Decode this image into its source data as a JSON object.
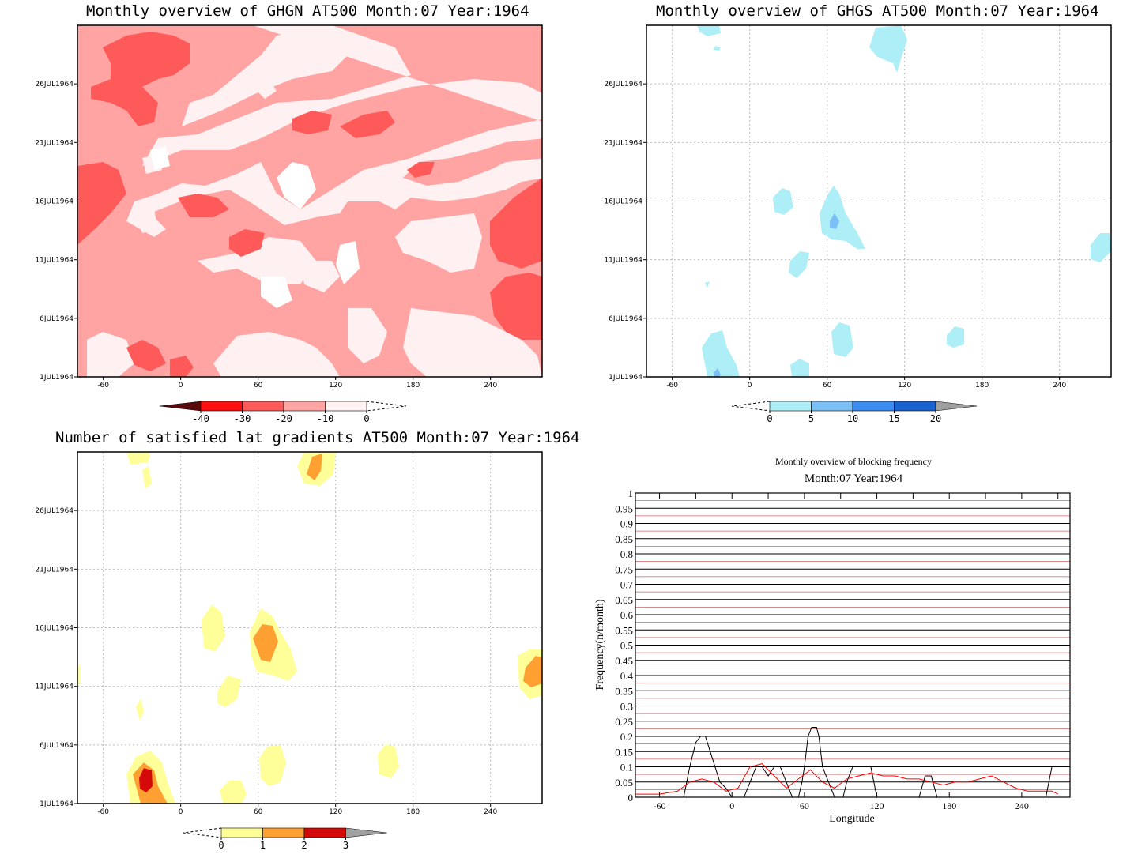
{
  "panels": {
    "ghgn": {
      "title": "Monthly overview of GHGN AT500 Month:07 Year:1964"
    },
    "ghgs": {
      "title": "Monthly overview of GHGS AT500 Month:07 Year:1964"
    },
    "latgrad": {
      "title": "Number of satisfied lat gradients AT500 Month:07 Year:1964"
    },
    "freq": {
      "title": "Monthly overview of blocking frequency",
      "subtitle": "Month:07 Year:1964"
    }
  },
  "map_axes": {
    "x_ticks": [
      "-60",
      "0",
      "60",
      "120",
      "180",
      "240"
    ],
    "x_values": [
      -60,
      0,
      60,
      120,
      180,
      240
    ],
    "xlim": [
      -80,
      280
    ],
    "y_ticks": [
      "1JUL1964",
      "6JUL1964",
      "11JUL1964",
      "16JUL1964",
      "21JUL1964",
      "26JUL1964"
    ],
    "y_values": [
      1,
      6,
      11,
      16,
      21,
      26
    ],
    "ylim": [
      1,
      31
    ]
  },
  "colorbars": {
    "ghgn": {
      "labels": [
        "-40",
        "-30",
        "-20",
        "-10",
        "0"
      ],
      "colors": [
        "#5a0a0a",
        "#ff1010",
        "#ff5a5a",
        "#ffa3a3",
        "#fff1f1"
      ]
    },
    "ghgs": {
      "labels": [
        "0",
        "5",
        "10",
        "15",
        "20"
      ],
      "colors": [
        "#aeeef6",
        "#7abff5",
        "#3a8cf0",
        "#1a62d0",
        "#a0a0a0"
      ]
    },
    "latgrad": {
      "labels": [
        "0",
        "1",
        "2",
        "3"
      ],
      "colors": [
        "#ffff9a",
        "#ffa033",
        "#d40a0a",
        "#a0a0a0"
      ]
    }
  },
  "chart_data": {
    "type": "line",
    "title": "Monthly overview of blocking frequency",
    "subtitle": "Month:07 Year:1964",
    "xlabel": "Longitude",
    "ylabel": "Frequency(n/month)",
    "xlim": [
      -80,
      280
    ],
    "ylim": [
      0,
      1
    ],
    "x_tick_labels": [
      "-60",
      "0",
      "60",
      "120",
      "180",
      "240"
    ],
    "x_ticks": [
      -60,
      0,
      60,
      120,
      180,
      240
    ],
    "y_tick_labels": [
      "0",
      "0.05",
      "0.1",
      "0.15",
      "0.2",
      "0.25",
      "0.3",
      "0.35",
      "0.4",
      "0.45",
      "0.5",
      "0.55",
      "0.6",
      "0.65",
      "0.7",
      "0.75",
      "0.8",
      "0.85",
      "0.9",
      "0.95",
      "1"
    ],
    "y_ticks": [
      0,
      0.05,
      0.1,
      0.15,
      0.2,
      0.25,
      0.3,
      0.35,
      0.4,
      0.45,
      0.5,
      0.55,
      0.6,
      0.65,
      0.7,
      0.75,
      0.8,
      0.85,
      0.9,
      0.95,
      1
    ],
    "grid": true,
    "series": [
      {
        "color": "#000000",
        "x": [
          -80,
          -70,
          -50,
          -40,
          -35,
          -30,
          -26,
          -22,
          -18,
          -14,
          -10,
          -5,
          0,
          10,
          20,
          25,
          30,
          35,
          40,
          45,
          50,
          55,
          58,
          60,
          63,
          66,
          68,
          70,
          72,
          75,
          80,
          85,
          88,
          92,
          95,
          100,
          110,
          115,
          120,
          140,
          150,
          155,
          160,
          165,
          170,
          175,
          180,
          240,
          250,
          260,
          265,
          270
        ],
        "y": [
          0,
          0,
          0,
          0,
          0.1,
          0.18,
          0.2,
          0.2,
          0.15,
          0.1,
          0.05,
          0.03,
          0,
          0,
          0.1,
          0.1,
          0.07,
          0.1,
          0.1,
          0.05,
          0,
          0,
          0.05,
          0.1,
          0.2,
          0.23,
          0.23,
          0.23,
          0.2,
          0.1,
          0.05,
          0,
          0,
          0,
          0.05,
          0.1,
          0.1,
          0.1,
          0,
          0,
          0,
          0,
          0.07,
          0.07,
          0,
          0,
          0,
          0,
          0,
          0,
          0.1,
          0.1
        ]
      },
      {
        "color": "#ff0000",
        "x": [
          -80,
          -60,
          -45,
          -35,
          -25,
          -15,
          -5,
          5,
          15,
          25,
          35,
          45,
          55,
          65,
          75,
          85,
          95,
          105,
          115,
          125,
          135,
          145,
          155,
          165,
          175,
          185,
          195,
          205,
          215,
          225,
          235,
          245,
          255,
          265,
          270
        ],
        "y": [
          0.01,
          0.01,
          0.02,
          0.05,
          0.06,
          0.05,
          0.02,
          0.03,
          0.1,
          0.11,
          0.07,
          0.03,
          0.06,
          0.09,
          0.05,
          0.03,
          0.06,
          0.07,
          0.08,
          0.07,
          0.07,
          0.06,
          0.06,
          0.05,
          0.04,
          0.05,
          0.05,
          0.06,
          0.07,
          0.05,
          0.03,
          0.02,
          0.02,
          0.02,
          0.01
        ]
      }
    ]
  }
}
